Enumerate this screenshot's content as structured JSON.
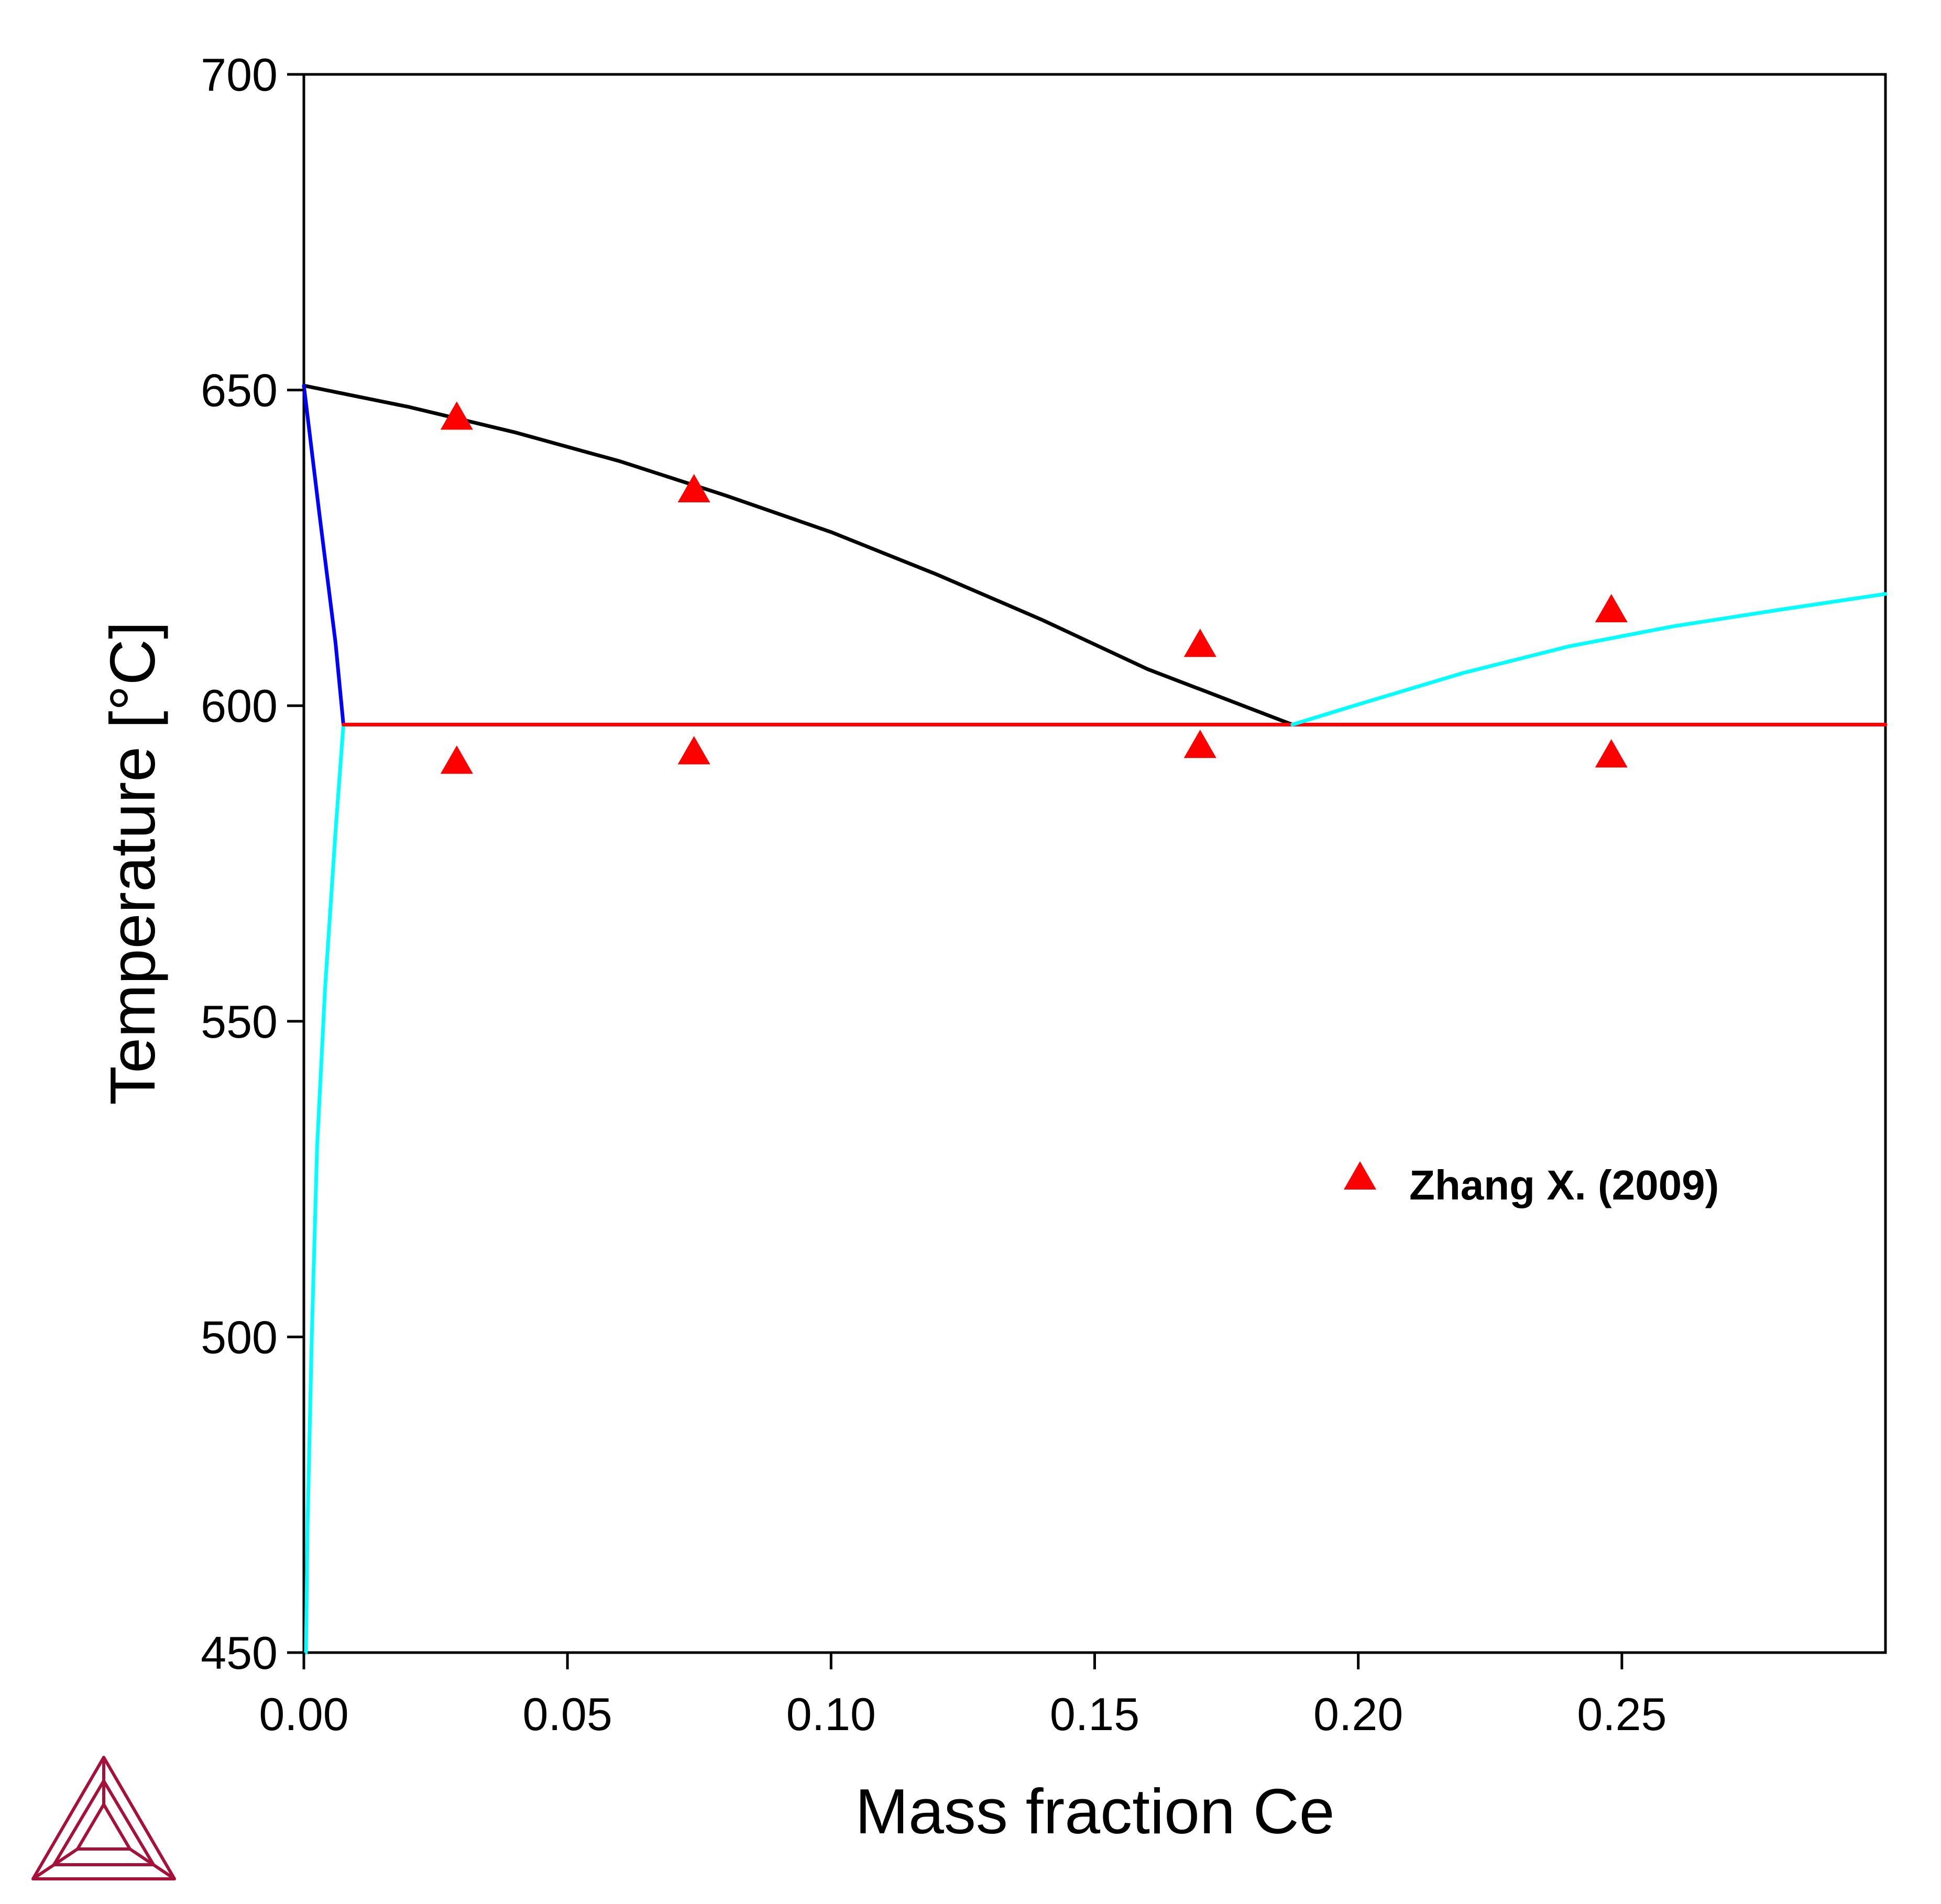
{
  "chart_data": {
    "type": "line",
    "xlabel": "Mass fraction Ce",
    "ylabel": "Temperature [°C]",
    "xlim": [
      0,
      0.3
    ],
    "ylim": [
      450,
      700
    ],
    "x_ticks": [
      "0.00",
      "0.05",
      "0.10",
      "0.15",
      "0.20",
      "0.25"
    ],
    "x_tick_values": [
      0,
      0.05,
      0.1,
      0.15,
      0.2,
      0.25
    ],
    "y_ticks": [
      "450",
      "500",
      "550",
      "600",
      "650",
      "700"
    ],
    "y_tick_values": [
      450,
      500,
      550,
      600,
      650,
      700
    ],
    "grid": false,
    "legend": {
      "placement": "right-center",
      "entries": [
        {
          "label": "Zhang X. (2009)",
          "marker": "triangle",
          "color": "#ff0000"
        }
      ]
    },
    "series": [
      {
        "color": "#000000",
        "points": [
          [
            0,
            650.7
          ],
          [
            0.02,
            647.3
          ],
          [
            0.04,
            643.3
          ],
          [
            0.06,
            638.7
          ],
          [
            0.08,
            633.3
          ],
          [
            0.1,
            627.5
          ],
          [
            0.12,
            620.8
          ],
          [
            0.14,
            613.6
          ],
          [
            0.16,
            605.8
          ],
          [
            0.1875,
            597
          ]
        ]
      },
      {
        "color": "#0000ff",
        "points": [
          [
            0,
            650.7
          ],
          [
            0.003,
            630
          ],
          [
            0.006,
            610
          ],
          [
            0.0075,
            597
          ]
        ]
      },
      {
        "color": "#00ffff",
        "points": [
          [
            0.0075,
            597
          ],
          [
            0.006,
            580
          ],
          [
            0.004,
            555
          ],
          [
            0.0025,
            530
          ],
          [
            0.0015,
            500
          ],
          [
            0.0007,
            470
          ],
          [
            0.0004,
            450
          ]
        ]
      },
      {
        "color": "#ff0000",
        "points": [
          [
            0.0075,
            597
          ],
          [
            0.3,
            597
          ]
        ]
      },
      {
        "color": "#00ffff",
        "points": [
          [
            0.1875,
            597
          ],
          [
            0.2,
            600.2
          ],
          [
            0.22,
            605.2
          ],
          [
            0.24,
            609.4
          ],
          [
            0.26,
            612.6
          ],
          [
            0.28,
            615.2
          ],
          [
            0.3,
            617.7
          ]
        ]
      }
    ],
    "scatter": {
      "name": "Zhang X. (2009)",
      "color": "#ff0000",
      "points": [
        [
          0.029,
          645.5
        ],
        [
          0.029,
          591.0
        ],
        [
          0.074,
          634.0
        ],
        [
          0.074,
          592.5
        ],
        [
          0.17,
          609.5
        ],
        [
          0.17,
          593.5
        ],
        [
          0.248,
          615.0
        ],
        [
          0.248,
          592.0
        ]
      ]
    }
  },
  "logo": {
    "name": "triangle-logo-icon",
    "color": "#a5113a"
  }
}
